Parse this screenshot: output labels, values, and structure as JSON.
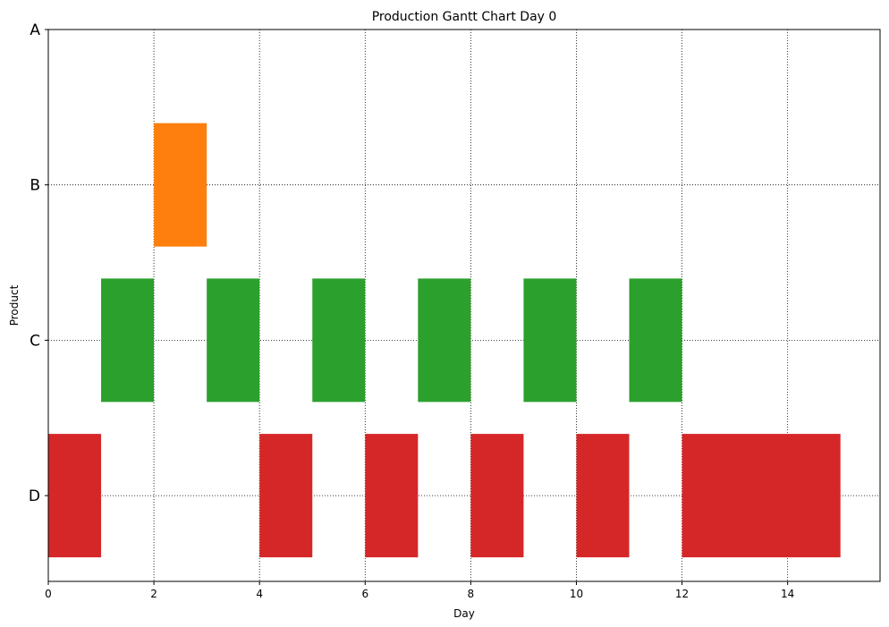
{
  "chart_data": {
    "type": "gantt",
    "title": "Production Gantt Chart Day 0",
    "xlabel": "Day",
    "ylabel": "Product",
    "xlim": [
      0,
      15.75
    ],
    "xticks": [
      0,
      2,
      4,
      6,
      8,
      10,
      12,
      14
    ],
    "categories": [
      "A",
      "B",
      "C",
      "D"
    ],
    "grid": true,
    "series": [
      {
        "name": "A",
        "color": "#1f77b4",
        "tasks": []
      },
      {
        "name": "B",
        "color": "#ff7f0e",
        "tasks": [
          {
            "start": 2,
            "end": 3
          }
        ]
      },
      {
        "name": "C",
        "color": "#2ca02c",
        "tasks": [
          {
            "start": 1,
            "end": 2
          },
          {
            "start": 3,
            "end": 4
          },
          {
            "start": 5,
            "end": 6
          },
          {
            "start": 7,
            "end": 8
          },
          {
            "start": 9,
            "end": 10
          },
          {
            "start": 11,
            "end": 12
          }
        ]
      },
      {
        "name": "D",
        "color": "#d62728",
        "tasks": [
          {
            "start": 0,
            "end": 1
          },
          {
            "start": 4,
            "end": 5
          },
          {
            "start": 6,
            "end": 7
          },
          {
            "start": 8,
            "end": 9
          },
          {
            "start": 10,
            "end": 11
          },
          {
            "start": 12,
            "end": 15
          }
        ]
      }
    ]
  }
}
